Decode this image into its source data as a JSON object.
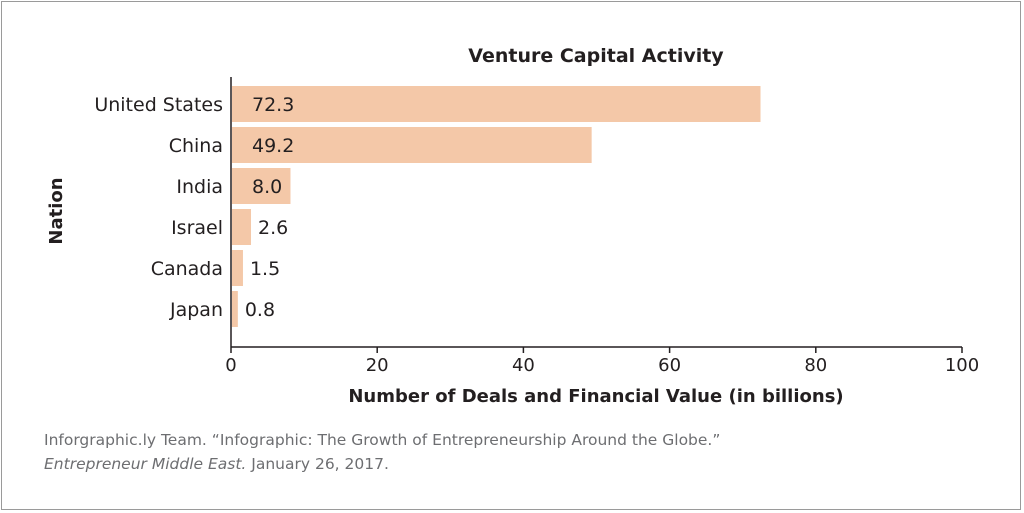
{
  "chart_data": {
    "type": "bar",
    "orientation": "horizontal",
    "title": "Venture Capital Activity",
    "xlabel": "Number of Deals and Financial Value (in billions)",
    "ylabel": "Nation",
    "categories": [
      "United States",
      "China",
      "India",
      "Israel",
      "Canada",
      "Japan"
    ],
    "values": [
      72.3,
      49.2,
      8.0,
      2.6,
      1.5,
      0.8
    ],
    "value_labels": [
      "72.3",
      "49.2",
      "8.0",
      "2.6",
      "1.5",
      "0.8"
    ],
    "xlim": [
      0,
      100
    ],
    "xticks": [
      0,
      20,
      40,
      60,
      80,
      100
    ],
    "grid": false,
    "bar_color": "#f4c8a8"
  },
  "source": {
    "line1": "Inforgraphic.ly Team. “Infographic: The Growth of Entrepreneurship Around the Globe.”",
    "journal": "Entrepreneur Middle East.",
    "date": " January 26, 2017."
  }
}
